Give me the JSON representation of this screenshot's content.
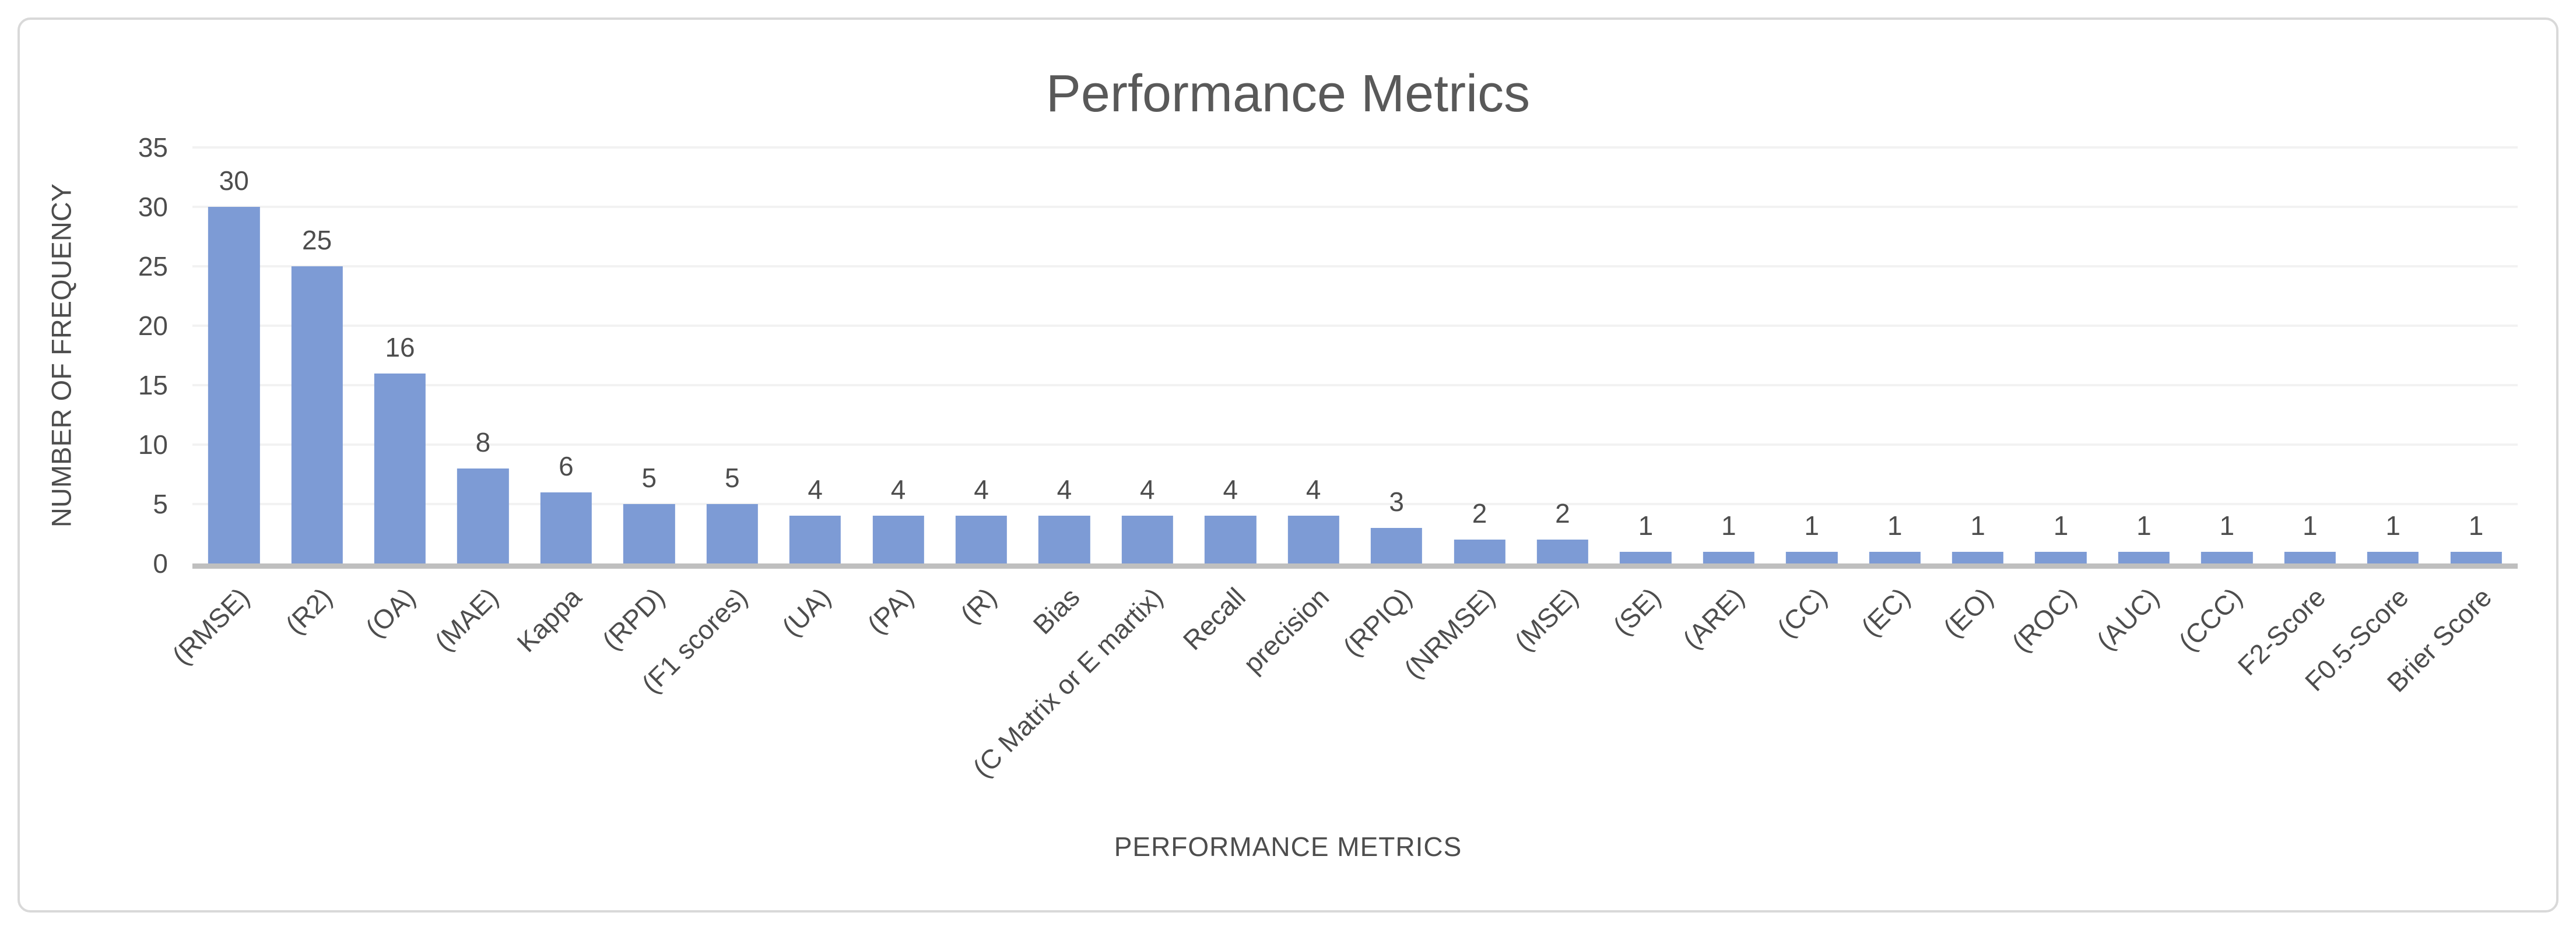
{
  "chart_data": {
    "type": "bar",
    "title": "Performance Metrics",
    "xlabel": "PERFORMANCE METRICS",
    "ylabel": "NUMBER OF FREQUENCY",
    "categories": [
      "(RMSE)",
      "(R2)",
      "(OA)",
      "(MAE)",
      "Kappa",
      "(RPD)",
      "(F1 scores)",
      "(UA)",
      "(PA)",
      "(R)",
      "Bias",
      "(C Matrix or E martix)",
      "Recall",
      "precision",
      "(RPIQ)",
      "(NRMSE)",
      "(MSE)",
      "(SE)",
      "(ARE)",
      "(CC)",
      "(EC)",
      "(EO)",
      "(ROC)",
      "(AUC)",
      "(CCC)",
      "F2-Score",
      "F0.5-Score",
      "Brier Score"
    ],
    "values": [
      30,
      25,
      16,
      8,
      6,
      5,
      5,
      4,
      4,
      4,
      4,
      4,
      4,
      4,
      3,
      2,
      2,
      1,
      1,
      1,
      1,
      1,
      1,
      1,
      1,
      1,
      1,
      1
    ],
    "data_labels": true,
    "ylim": [
      0,
      35
    ],
    "y_ticks": [
      0,
      5,
      10,
      15,
      20,
      25,
      30,
      35
    ],
    "grid": true,
    "legend": "none",
    "x_label_rotation_deg": 45,
    "colors": {
      "bar": "#7D9BD5",
      "grid": "#F2F2F2",
      "axisline": "#BFBFBF",
      "title": "#595959",
      "label": "#4D4D4D",
      "border": "#D9D9D9"
    }
  }
}
